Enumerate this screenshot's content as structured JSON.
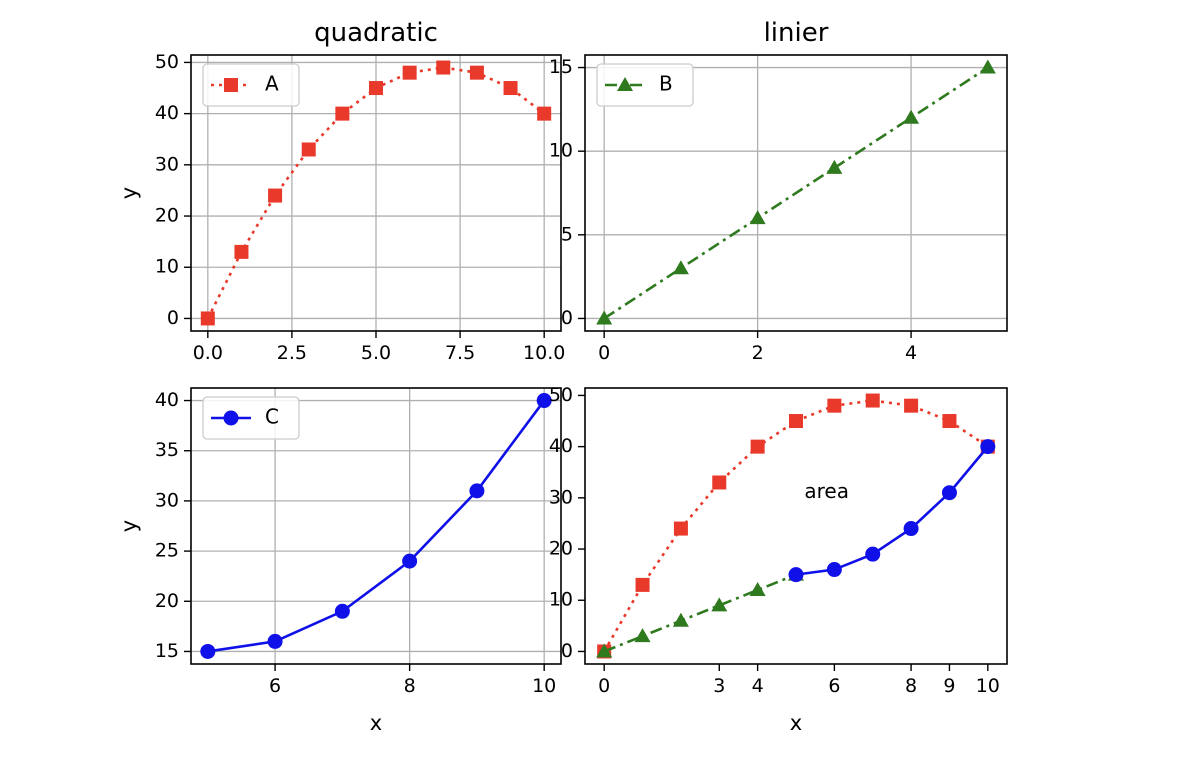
{
  "colors": {
    "A": "#e8392b",
    "B": "#2f7a1f",
    "C": "#1010e8",
    "grid": "#b0b0b0",
    "axes": "#000000"
  },
  "chart_data": [
    {
      "type": "line",
      "title": "quadratic",
      "xlabel": "",
      "ylabel": "y",
      "xlim": [
        -0.5,
        10.5
      ],
      "ylim": [
        -2.45,
        51.45
      ],
      "xticks": [
        0,
        2.5,
        5,
        7.5,
        10
      ],
      "xtick_labels": [
        "0.0",
        "2.5",
        "5.0",
        "7.5",
        "10.0"
      ],
      "yticks": [
        0,
        10,
        20,
        30,
        40,
        50
      ],
      "ytick_labels": [
        "0",
        "10",
        "20",
        "30",
        "40",
        "50"
      ],
      "grid": true,
      "legend": "top-left",
      "series": [
        {
          "name": "A",
          "color": "red",
          "marker": "square",
          "linestyle": "dotted",
          "x": [
            0,
            1,
            2,
            3,
            4,
            5,
            6,
            7,
            8,
            9,
            10
          ],
          "y": [
            0,
            13,
            24,
            33,
            40,
            45,
            48,
            49,
            48,
            45,
            40
          ]
        }
      ]
    },
    {
      "type": "line",
      "title": "linier",
      "xlabel": "",
      "ylabel": "",
      "xlim": [
        -0.25,
        5.25
      ],
      "ylim": [
        -0.75,
        15.75
      ],
      "xticks": [
        0,
        2,
        4
      ],
      "xtick_labels": [
        "0",
        "2",
        "4"
      ],
      "yticks": [
        0,
        5,
        10,
        15
      ],
      "ytick_labels": [
        "0",
        "5",
        "10",
        "15"
      ],
      "grid": true,
      "legend": "top-left",
      "series": [
        {
          "name": "B",
          "color": "green",
          "marker": "triangle",
          "linestyle": "dashdot",
          "x": [
            0,
            1,
            2,
            3,
            4,
            5
          ],
          "y": [
            0,
            3,
            6,
            9,
            12,
            15
          ]
        }
      ]
    },
    {
      "type": "line",
      "title": "",
      "xlabel": "x",
      "ylabel": "y",
      "xlim": [
        4.75,
        10.25
      ],
      "ylim": [
        13.75,
        41.25
      ],
      "xticks": [
        6,
        8,
        10
      ],
      "xtick_labels": [
        "6",
        "8",
        "10"
      ],
      "yticks": [
        15,
        20,
        25,
        30,
        35,
        40
      ],
      "ytick_labels": [
        "15",
        "20",
        "25",
        "30",
        "35",
        "40"
      ],
      "grid": true,
      "legend": "top-left",
      "series": [
        {
          "name": "C",
          "color": "blue",
          "marker": "circle",
          "linestyle": "solid",
          "x": [
            5,
            6,
            7,
            8,
            9,
            10
          ],
          "y": [
            15,
            16,
            19,
            24,
            31,
            40
          ]
        }
      ]
    },
    {
      "type": "line",
      "title": "",
      "xlabel": "x",
      "ylabel": "",
      "xlim": [
        -0.5,
        10.5
      ],
      "ylim": [
        -2.45,
        51.45
      ],
      "xticks": [
        0,
        3,
        4,
        6,
        8,
        9,
        10
      ],
      "xtick_labels": [
        "0",
        "3",
        "4",
        "6",
        "8",
        "9",
        "10"
      ],
      "yticks": [
        0,
        10,
        20,
        30,
        40,
        50
      ],
      "ytick_labels": [
        "0",
        "10",
        "20",
        "30",
        "40",
        "50"
      ],
      "grid": false,
      "legend": "none",
      "annotations": [
        {
          "text": "area",
          "x": 5.8,
          "y": 31
        }
      ],
      "series": [
        {
          "color": "red",
          "marker": "square",
          "linestyle": "dotted",
          "x": [
            0,
            1,
            2,
            3,
            4,
            5,
            6,
            7,
            8,
            9,
            10
          ],
          "y": [
            0,
            13,
            24,
            33,
            40,
            45,
            48,
            49,
            48,
            45,
            40
          ]
        },
        {
          "color": "green",
          "marker": "triangle",
          "linestyle": "dashdot",
          "x": [
            0,
            1,
            2,
            3,
            4,
            5
          ],
          "y": [
            0,
            3,
            6,
            9,
            12,
            15
          ]
        },
        {
          "color": "blue",
          "marker": "circle",
          "linestyle": "solid",
          "x": [
            5,
            6,
            7,
            8,
            9,
            10
          ],
          "y": [
            15,
            16,
            19,
            24,
            31,
            40
          ]
        }
      ]
    }
  ]
}
